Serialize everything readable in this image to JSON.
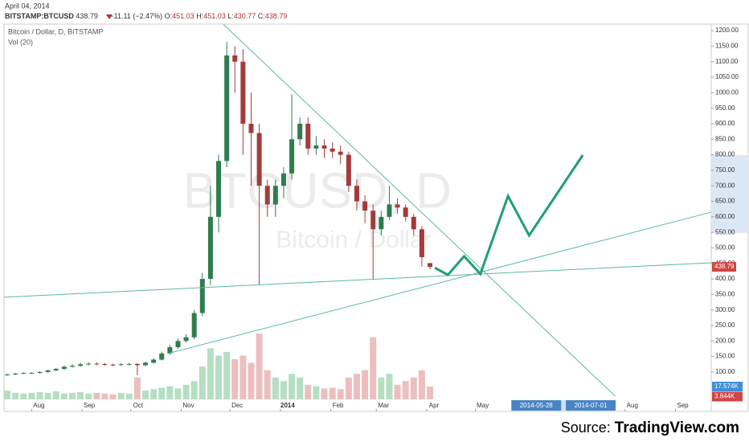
{
  "header": {
    "date": "April 04, 2014",
    "symbol": "BITSTAMP:BTCUSD",
    "last": 438.79,
    "change": "−11.11 (−2.47%)",
    "ohlc": [
      {
        "label": "O:",
        "value": 451.03
      },
      {
        "label": "H:",
        "value": 451.03
      },
      {
        "label": "L:",
        "value": 430.77
      },
      {
        "label": "C:",
        "value": 438.79
      }
    ]
  },
  "chart_data": {
    "type": "candlestick",
    "legend": [
      "Bitcoin / Dollar, D, BITSTAMP",
      "Vol (20)"
    ],
    "watermark": [
      "BTCUSD, D",
      "Bitcoin / Dollar"
    ],
    "x": [
      -15,
      -10,
      -5,
      0,
      5,
      10,
      15,
      20,
      25,
      30,
      35,
      40,
      45,
      50,
      55,
      60,
      65,
      70,
      75,
      80,
      85,
      90,
      95,
      100,
      105,
      110,
      115,
      120,
      125,
      130,
      135,
      140,
      145,
      150,
      155,
      160,
      165,
      170,
      175,
      180,
      185,
      190,
      195,
      200,
      205,
      210,
      215,
      220,
      225,
      230,
      235,
      240,
      245
    ],
    "open": [
      90,
      92,
      95,
      97,
      97,
      100,
      105,
      110,
      117,
      120,
      125,
      127,
      126,
      124,
      123,
      125,
      126,
      122,
      130,
      140,
      160,
      180,
      200,
      212,
      290,
      400,
      600,
      780,
      1120,
      1100,
      900,
      870,
      700,
      640,
      700,
      740,
      850,
      900,
      820,
      830,
      820,
      810,
      800,
      700,
      650,
      620,
      560,
      600,
      640,
      630,
      600,
      560,
      451.03
    ],
    "high": [
      95,
      97,
      99,
      100,
      103,
      108,
      113,
      121,
      126,
      130,
      132,
      131,
      129,
      127,
      129,
      130,
      129,
      134,
      145,
      166,
      188,
      208,
      222,
      300,
      420,
      700,
      800,
      1163,
      1150,
      1140,
      1000,
      900,
      720,
      720,
      760,
      995,
      920,
      920,
      860,
      850,
      840,
      830,
      810,
      720,
      670,
      640,
      620,
      700,
      660,
      640,
      610,
      570,
      451.03
    ],
    "low": [
      88,
      90,
      93,
      94,
      95,
      98,
      103,
      108,
      114,
      117,
      121,
      122,
      120,
      119,
      120,
      121,
      90,
      118,
      127,
      137,
      155,
      175,
      195,
      205,
      280,
      380,
      550,
      760,
      1000,
      800,
      700,
      380,
      600,
      600,
      660,
      720,
      830,
      800,
      800,
      790,
      790,
      770,
      680,
      620,
      580,
      400,
      540,
      590,
      610,
      585,
      540,
      440,
      430.77
    ],
    "close": [
      92,
      95,
      97,
      97,
      100,
      105,
      110,
      117,
      120,
      125,
      127,
      126,
      124,
      123,
      125,
      126,
      122,
      130,
      140,
      160,
      180,
      200,
      212,
      290,
      400,
      600,
      780,
      1120,
      1100,
      900,
      870,
      700,
      640,
      700,
      740,
      850,
      900,
      820,
      830,
      820,
      810,
      800,
      700,
      650,
      620,
      560,
      600,
      640,
      630,
      600,
      560,
      470,
      438.79
    ],
    "volume": [
      12000,
      9000,
      8000,
      9000,
      10000,
      9000,
      11000,
      8000,
      9000,
      10000,
      8000,
      9000,
      8000,
      7000,
      9000,
      8000,
      30000,
      12000,
      14000,
      16000,
      18000,
      15000,
      20000,
      25000,
      45000,
      70000,
      60000,
      65000,
      55000,
      60000,
      50000,
      90000,
      40000,
      30000,
      25000,
      35000,
      30000,
      20000,
      18000,
      15000,
      16000,
      14000,
      30000,
      35000,
      40000,
      85000,
      30000,
      35000,
      20000,
      25000,
      30000,
      40000,
      17574
    ],
    "up_color": "#2f7d4f",
    "down_color": "#a33b3b",
    "up_volume_color": "#a8d8b8",
    "down_volume_color": "#e8b4b4",
    "xlim": [
      -17,
      418
    ],
    "xticks": [
      {
        "value": 0,
        "label": "Aug"
      },
      {
        "value": 31,
        "label": "Sep"
      },
      {
        "value": 61,
        "label": "Oct"
      },
      {
        "value": 92,
        "label": "Nov"
      },
      {
        "value": 122,
        "label": "Dec"
      },
      {
        "value": 153,
        "label": "2014"
      },
      {
        "value": 184,
        "label": "Feb"
      },
      {
        "value": 212,
        "label": "Mar"
      },
      {
        "value": 243,
        "label": "Apr"
      },
      {
        "value": 273,
        "label": "May"
      },
      {
        "value": 365,
        "label": "Aug"
      },
      {
        "value": 396,
        "label": "Sep"
      }
    ],
    "x_range_labels": [
      {
        "value": 300,
        "label": "2014-05-28"
      },
      {
        "value": 334,
        "label": "2014-07-01"
      }
    ],
    "ylim": [
      -27,
      1221
    ],
    "yticks": [
      {
        "value": 100,
        "label": "100.00"
      },
      {
        "value": 150,
        "label": "150.00"
      },
      {
        "value": 200,
        "label": "200.00"
      },
      {
        "value": 250,
        "label": "250.00"
      },
      {
        "value": 300,
        "label": "300.00"
      },
      {
        "value": 350,
        "label": "350.00"
      },
      {
        "value": 400,
        "label": "400.00"
      },
      {
        "value": 450,
        "label": "450.00"
      },
      {
        "value": 500,
        "label": "500.00"
      },
      {
        "value": 550,
        "label": "550.00"
      },
      {
        "value": 600,
        "label": "600.00"
      },
      {
        "value": 650,
        "label": "650.00"
      },
      {
        "value": 700,
        "label": "700.00"
      },
      {
        "value": 750,
        "label": "750.00"
      },
      {
        "value": 800,
        "label": "800.00"
      },
      {
        "value": 850,
        "label": "850.00"
      },
      {
        "value": 900,
        "label": "900.00"
      },
      {
        "value": 950,
        "label": "950.00"
      },
      {
        "value": 1000,
        "label": "1000.00"
      },
      {
        "value": 1050,
        "label": "1050.00"
      },
      {
        "value": 1100,
        "label": "1100.00"
      },
      {
        "value": 1150,
        "label": "1150.00"
      },
      {
        "value": 1200,
        "label": "1200.00"
      }
    ],
    "highlight_ylim": [
      548,
      799
    ],
    "last_price": 438.79,
    "vlim": [
      0,
      110000
    ],
    "volume_markers": [
      {
        "value": 17574,
        "label": "17.574K",
        "color": "#3f8ed8"
      },
      {
        "value": 3844,
        "label": "3.844K",
        "color": "#d04545"
      }
    ],
    "trendline_color": "#5cb89e",
    "trendlines": [
      {
        "x": [
          118,
          359
        ],
        "y": [
          1220,
          22
        ]
      },
      {
        "x": [
          -17,
          418
        ],
        "y": [
          341,
          452
        ]
      },
      {
        "x": [
          84,
          418
        ],
        "y": [
          160,
          615
        ]
      }
    ],
    "projection": {
      "color": "#1f9e78",
      "x": [
        248,
        256,
        266,
        276,
        293,
        306,
        339
      ],
      "y": [
        436,
        413,
        473,
        416,
        667,
        540,
        799
      ]
    }
  },
  "source": {
    "label": "Source:",
    "site": "TradingView.com"
  }
}
